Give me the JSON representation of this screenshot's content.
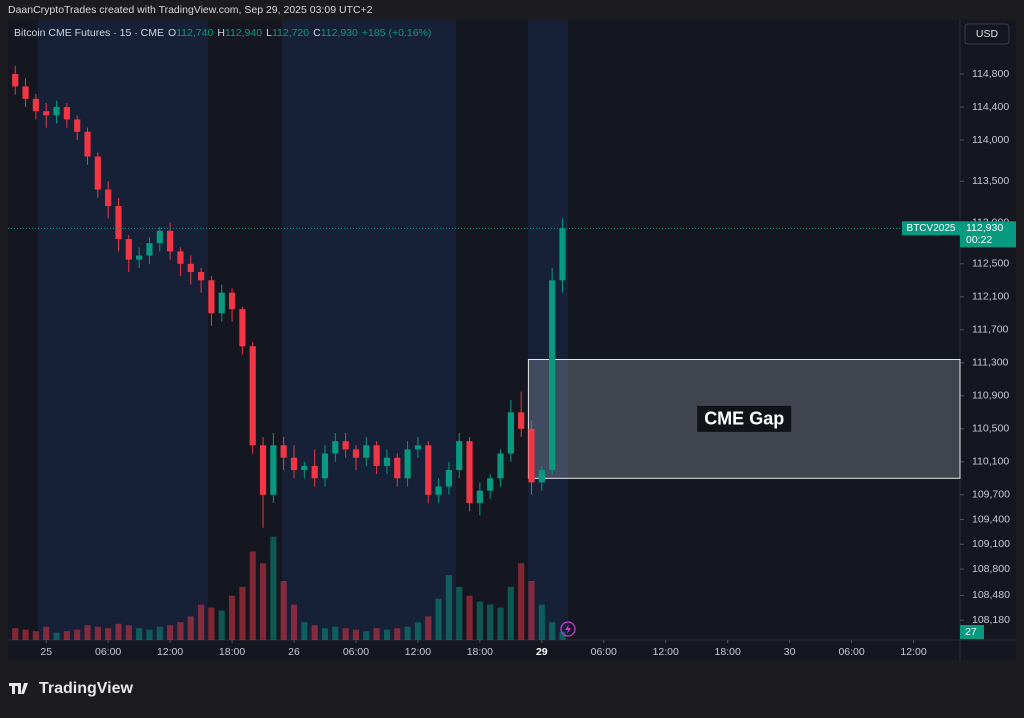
{
  "header": "DaanCryptoTrades created with TradingView.com, Sep 29, 2025 03:09 UTC+2",
  "footer": "TradingView",
  "currency_button": "USD",
  "chart_data": {
    "type": "candlestick",
    "legend": {
      "symbol": "Bitcoin CME Futures · 15 · CME",
      "ohlc": [
        {
          "key": "O",
          "value": "112,740"
        },
        {
          "key": "H",
          "value": "112,940"
        },
        {
          "key": "L",
          "value": "112,720"
        },
        {
          "key": "C",
          "value": "112,930"
        }
      ],
      "change": "+185 (+0.16%)"
    },
    "up_color": "#089981",
    "down_color": "#f23645",
    "x": [
      -3,
      -2,
      -1,
      0,
      1,
      2,
      3,
      4,
      5,
      6,
      7,
      8,
      9,
      10,
      11,
      12,
      13,
      14,
      15,
      16,
      17,
      18,
      19,
      20,
      21,
      22,
      23,
      24,
      25,
      26,
      27,
      28,
      29,
      30,
      31,
      32,
      33,
      34,
      35,
      36,
      37,
      38,
      39,
      40,
      41,
      42,
      43,
      44,
      45,
      46,
      47,
      48,
      49,
      50
    ],
    "open": [
      114800,
      114650,
      114500,
      114350,
      114300,
      114400,
      114250,
      114100,
      113800,
      113400,
      113200,
      112800,
      112550,
      112600,
      112750,
      112900,
      112650,
      112500,
      112400,
      112300,
      111900,
      112150,
      111950,
      111500,
      110300,
      109700,
      110300,
      110150,
      110000,
      110050,
      109900,
      110200,
      110350,
      110250,
      110150,
      110300,
      110050,
      110150,
      109900,
      110250,
      110300,
      109700,
      109800,
      110000,
      110350,
      109600,
      109750,
      109900,
      110200,
      110700,
      110500,
      109850,
      110000,
      112300
    ],
    "high": [
      114900,
      114750,
      114560,
      114450,
      114480,
      114450,
      114300,
      114150,
      113850,
      113500,
      113300,
      112850,
      112700,
      112820,
      112950,
      113000,
      112700,
      112600,
      112450,
      112350,
      112250,
      112200,
      111980,
      111550,
      110400,
      110450,
      110400,
      110300,
      110100,
      110250,
      110300,
      110450,
      110450,
      110300,
      110400,
      110350,
      110250,
      110200,
      110350,
      110400,
      110350,
      109900,
      110100,
      110450,
      110400,
      109850,
      109950,
      110250,
      110850,
      110950,
      110600,
      110050,
      112450,
      113050
    ],
    "low": [
      114550,
      114400,
      114250,
      114150,
      114200,
      114150,
      114000,
      113700,
      113300,
      113050,
      112650,
      112400,
      112450,
      112500,
      112650,
      112550,
      112350,
      112250,
      112150,
      111750,
      111800,
      111800,
      111400,
      110200,
      109300,
      109600,
      110000,
      109900,
      109900,
      109800,
      109800,
      110100,
      110150,
      110000,
      110050,
      109950,
      109950,
      109800,
      109800,
      110150,
      109600,
      109600,
      109700,
      109900,
      109500,
      109450,
      109650,
      109800,
      110100,
      110400,
      109700,
      109750,
      109950,
      112150
    ],
    "close": [
      114650,
      114500,
      114350,
      114300,
      114400,
      114250,
      114100,
      113800,
      113400,
      113200,
      112800,
      112550,
      112600,
      112750,
      112900,
      112650,
      112500,
      112400,
      112300,
      111900,
      112150,
      111950,
      111500,
      110300,
      109700,
      110300,
      110150,
      110000,
      110050,
      109900,
      110200,
      110350,
      110250,
      110150,
      110300,
      110050,
      110150,
      109900,
      110250,
      110300,
      109700,
      109800,
      110000,
      110350,
      109600,
      109750,
      109900,
      110200,
      110700,
      110500,
      109850,
      110000,
      112300,
      112930
    ],
    "volume": [
      40,
      35,
      30,
      45,
      25,
      30,
      35,
      50,
      45,
      40,
      55,
      50,
      40,
      35,
      45,
      50,
      60,
      80,
      120,
      110,
      100,
      150,
      180,
      300,
      260,
      350,
      200,
      120,
      60,
      50,
      40,
      45,
      40,
      35,
      30,
      40,
      35,
      40,
      45,
      60,
      80,
      140,
      220,
      180,
      150,
      130,
      120,
      110,
      180,
      260,
      200,
      120,
      60,
      27
    ],
    "volume_ylim": [
      0,
      2100
    ],
    "last_volume": 27,
    "xlim": [
      -3.7,
      88.5
    ],
    "xticks": [
      {
        "value": 0,
        "label": "25"
      },
      {
        "value": 6,
        "label": "06:00"
      },
      {
        "value": 12,
        "label": "12:00"
      },
      {
        "value": 18,
        "label": "18:00"
      },
      {
        "value": 24,
        "label": "26"
      },
      {
        "value": 30,
        "label": "06:00"
      },
      {
        "value": 36,
        "label": "12:00"
      },
      {
        "value": 42,
        "label": "18:00"
      },
      {
        "value": 48,
        "label": "29"
      },
      {
        "value": 54,
        "label": "06:00"
      },
      {
        "value": 60,
        "label": "12:00"
      },
      {
        "value": 66,
        "label": "18:00"
      },
      {
        "value": 72,
        "label": "30"
      },
      {
        "value": 78,
        "label": "06:00"
      },
      {
        "value": 84,
        "label": "12:00"
      }
    ],
    "ylim": [
      107940,
      115455
    ],
    "yticks": [
      {
        "value": 114800,
        "label": "114,800"
      },
      {
        "value": 114400,
        "label": "114,400"
      },
      {
        "value": 114000,
        "label": "114,000"
      },
      {
        "value": 113500,
        "label": "113,500"
      },
      {
        "value": 113000,
        "label": "113,000"
      },
      {
        "value": 112500,
        "label": "112,500"
      },
      {
        "value": 112100,
        "label": "112,100"
      },
      {
        "value": 111700,
        "label": "111,700"
      },
      {
        "value": 111300,
        "label": "111,300"
      },
      {
        "value": 110900,
        "label": "110,900"
      },
      {
        "value": 110500,
        "label": "110,500"
      },
      {
        "value": 110100,
        "label": "110,100"
      },
      {
        "value": 109700,
        "label": "109,700"
      },
      {
        "value": 109400,
        "label": "109,400"
      },
      {
        "value": 109100,
        "label": "109,100"
      },
      {
        "value": 108800,
        "label": "108,800"
      },
      {
        "value": 108480,
        "label": "108,480"
      },
      {
        "value": 108180,
        "label": "108,180"
      }
    ],
    "last_price": {
      "value": 112930,
      "label": "112,930"
    },
    "symbol_label": "BTCV2025",
    "countdown": "00:22",
    "gap": {
      "label": "CME Gap",
      "start": 46.7,
      "top": 111340,
      "bottom": 109900
    }
  }
}
